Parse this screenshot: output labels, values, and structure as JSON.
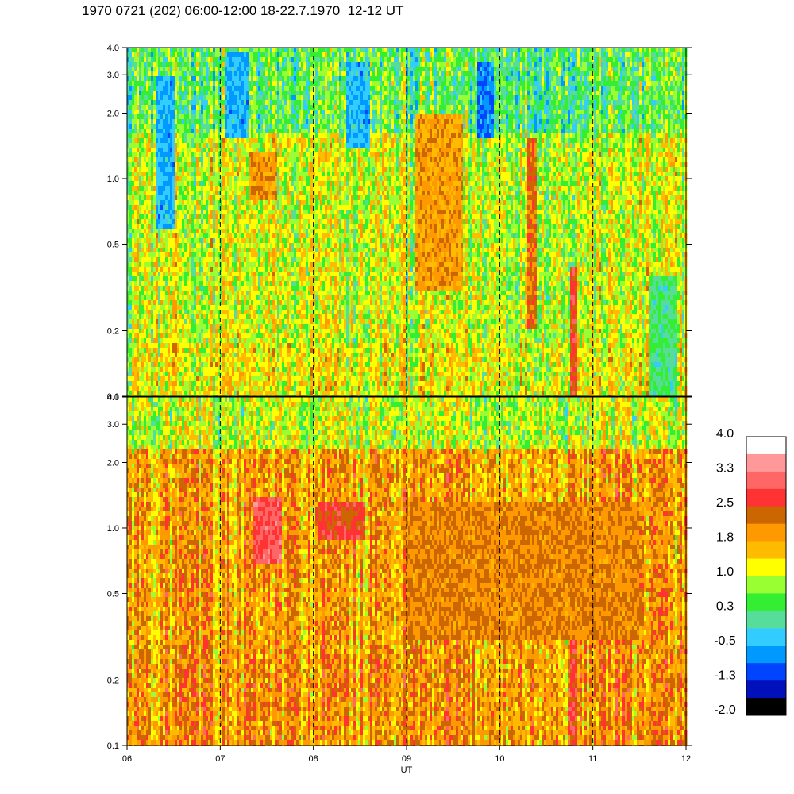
{
  "title": "1970 0721 (202) 06:00-12:00 18-22.7.1970  12-12 UT",
  "chart_data": [
    {
      "type": "heatmap",
      "panel": "top",
      "y_scale": "log",
      "ylim": [
        0.1,
        4.0
      ],
      "y_ticks": [
        "0.1",
        "0.2",
        "0.5",
        "1.0",
        "2.0",
        "3.0",
        "4.0"
      ],
      "x_range_hours_ut": [
        6,
        12
      ],
      "value_range": [
        -2.0,
        4.0
      ],
      "description_levels": {
        "background": 1.0,
        "features": [
          {
            "t_start": 6.3,
            "t_end": 6.5,
            "f_min": 0.6,
            "f_max": 3.0,
            "value": -0.5
          },
          {
            "t_start": 7.05,
            "t_end": 7.3,
            "f_min": 1.5,
            "f_max": 3.8,
            "value": -0.5
          },
          {
            "t_start": 8.35,
            "t_end": 8.6,
            "f_min": 1.4,
            "f_max": 3.5,
            "value": -0.5
          },
          {
            "t_start": 9.75,
            "t_end": 9.95,
            "f_min": 1.5,
            "f_max": 3.5,
            "value": -0.8
          },
          {
            "t_start": 7.3,
            "t_end": 7.6,
            "f_min": 0.8,
            "f_max": 1.3,
            "value": 2.0
          },
          {
            "t_start": 9.1,
            "t_end": 9.6,
            "f_min": 0.3,
            "f_max": 2.0,
            "value": 1.9
          },
          {
            "t_start": 10.3,
            "t_end": 10.4,
            "f_min": 0.2,
            "f_max": 1.5,
            "value": 2.3
          },
          {
            "t_start": 10.75,
            "t_end": 10.82,
            "f_min": 0.1,
            "f_max": 0.4,
            "value": 2.6
          },
          {
            "t_start": 11.6,
            "t_end": 11.9,
            "f_min": 0.1,
            "f_max": 0.35,
            "value": 0.2
          }
        ]
      }
    },
    {
      "type": "heatmap",
      "panel": "bottom",
      "y_scale": "log",
      "ylim": [
        0.1,
        4.0
      ],
      "y_ticks": [
        "0.1",
        "0.2",
        "0.5",
        "1.0",
        "2.0",
        "3.0",
        "4.0"
      ],
      "x_range_hours_ut": [
        6,
        12
      ],
      "x_ticks": [
        "06",
        "07",
        "08",
        "09",
        "10",
        "11",
        "12"
      ],
      "xlabel": "UT",
      "value_range": [
        -2.0,
        4.0
      ],
      "description_levels": {
        "background": 1.8,
        "features": [
          {
            "t_start": 7.35,
            "t_end": 7.65,
            "f_min": 0.7,
            "f_max": 1.4,
            "value": 2.9
          },
          {
            "t_start": 8.05,
            "t_end": 8.55,
            "f_min": 0.9,
            "f_max": 1.3,
            "value": 2.6
          },
          {
            "t_start": 9.0,
            "t_end": 11.5,
            "f_min": 0.3,
            "f_max": 1.3,
            "value": 2.1
          },
          {
            "t_start": 10.75,
            "t_end": 10.82,
            "f_min": 0.1,
            "f_max": 0.3,
            "value": 2.7
          }
        ]
      }
    }
  ],
  "colorbar": {
    "labels": [
      "4.0",
      "3.3",
      "2.5",
      "1.8",
      "1.0",
      "0.3",
      "-0.5",
      "-1.3",
      "-2.0"
    ],
    "colors": [
      "#ffffff",
      "#ff9999",
      "#ff6666",
      "#ff3333",
      "#cc6600",
      "#ff9900",
      "#ffbb00",
      "#ffff00",
      "#99ff33",
      "#33ee33",
      "#55dd99",
      "#33ccff",
      "#0099ff",
      "#0044ff",
      "#0011bb",
      "#000000"
    ]
  }
}
